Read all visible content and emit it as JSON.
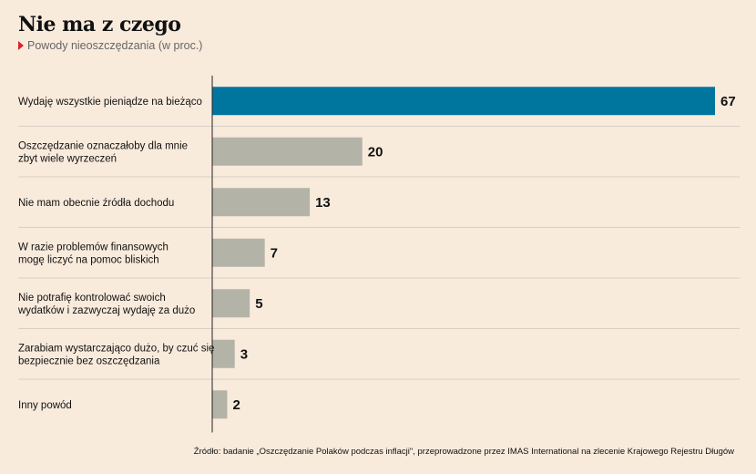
{
  "title": "Nie ma z czego",
  "subtitle": "Powody nieoszczędzania (w proc.)",
  "source": "Źródło: badanie „Oszczędzanie Polaków podczas inflacji\", przeprowadzone przez IMAS International na zlecenie Krajowego Rejestru Długów",
  "colors": {
    "highlight": "#00759e",
    "default": "#b4b3a8"
  },
  "chart_data": {
    "type": "bar",
    "orientation": "horizontal",
    "categories": [
      [
        "Wydaję wszystkie pieniądze na bieżąco"
      ],
      [
        "Oszczędzanie oznaczałoby dla mnie",
        "zbyt wiele wyrzeczeń"
      ],
      [
        "Nie mam obecnie źródła dochodu"
      ],
      [
        "W razie problemów finansowych",
        "mogę liczyć na pomoc bliskich"
      ],
      [
        "Nie potrafię kontrolować swoich",
        "wydatków i zazwyczaj wydaję za dużo"
      ],
      [
        "Zarabiam wystarczająco dużo, by czuć się",
        "bezpiecznie bez oszczędzania"
      ],
      [
        "Inny powód"
      ]
    ],
    "values": [
      67,
      20,
      13,
      7,
      5,
      3,
      2
    ],
    "highlight_index": 0,
    "xlim": [
      0,
      67
    ],
    "grid": false
  }
}
